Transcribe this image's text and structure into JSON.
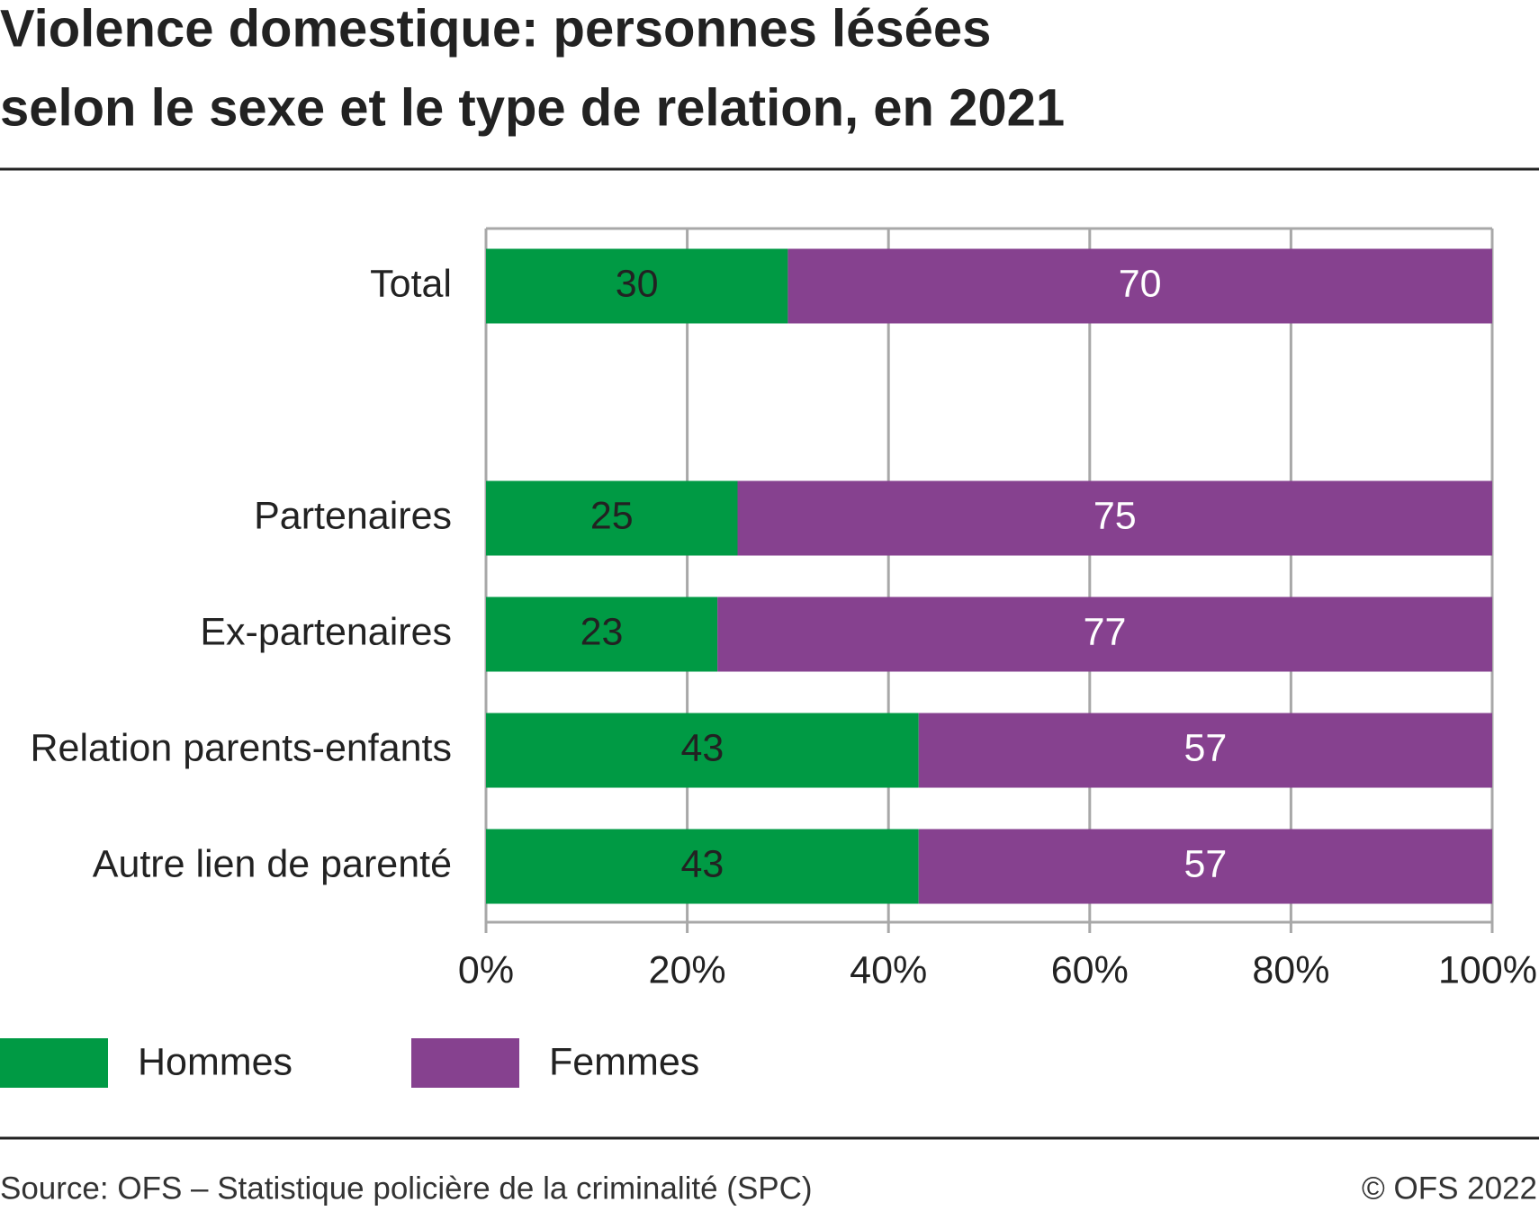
{
  "chart_data": {
    "type": "stacked-bar-horizontal",
    "title": [
      "Violence domestique: personnes lésées",
      "selon le sexe et le type de relation, en 2021"
    ],
    "categories": [
      "Total",
      null,
      "Partenaires",
      "Ex-partenaires",
      "Relation parents-enfants",
      "Autre lien de parenté"
    ],
    "series": [
      {
        "name": "Hommes",
        "color": "#009a44",
        "label_color": "#222222",
        "values": [
          30,
          null,
          25,
          23,
          43,
          43
        ]
      },
      {
        "name": "Femmes",
        "color": "#86418f",
        "label_color": "#ffffff",
        "values": [
          70,
          null,
          75,
          77,
          57,
          57
        ]
      }
    ],
    "xlim": [
      0,
      100
    ],
    "xticks": [
      {
        "value": 0,
        "label": "0%"
      },
      {
        "value": 20,
        "label": "20%"
      },
      {
        "value": 40,
        "label": "40%"
      },
      {
        "value": 60,
        "label": "60%"
      },
      {
        "value": 80,
        "label": "80%"
      },
      {
        "value": 100,
        "label": "100%"
      }
    ],
    "grid": true,
    "legend": "bottom-left",
    "source": "Source: OFS – Statistique policière de la criminalité (SPC)",
    "copyright": "© OFS 2022"
  }
}
